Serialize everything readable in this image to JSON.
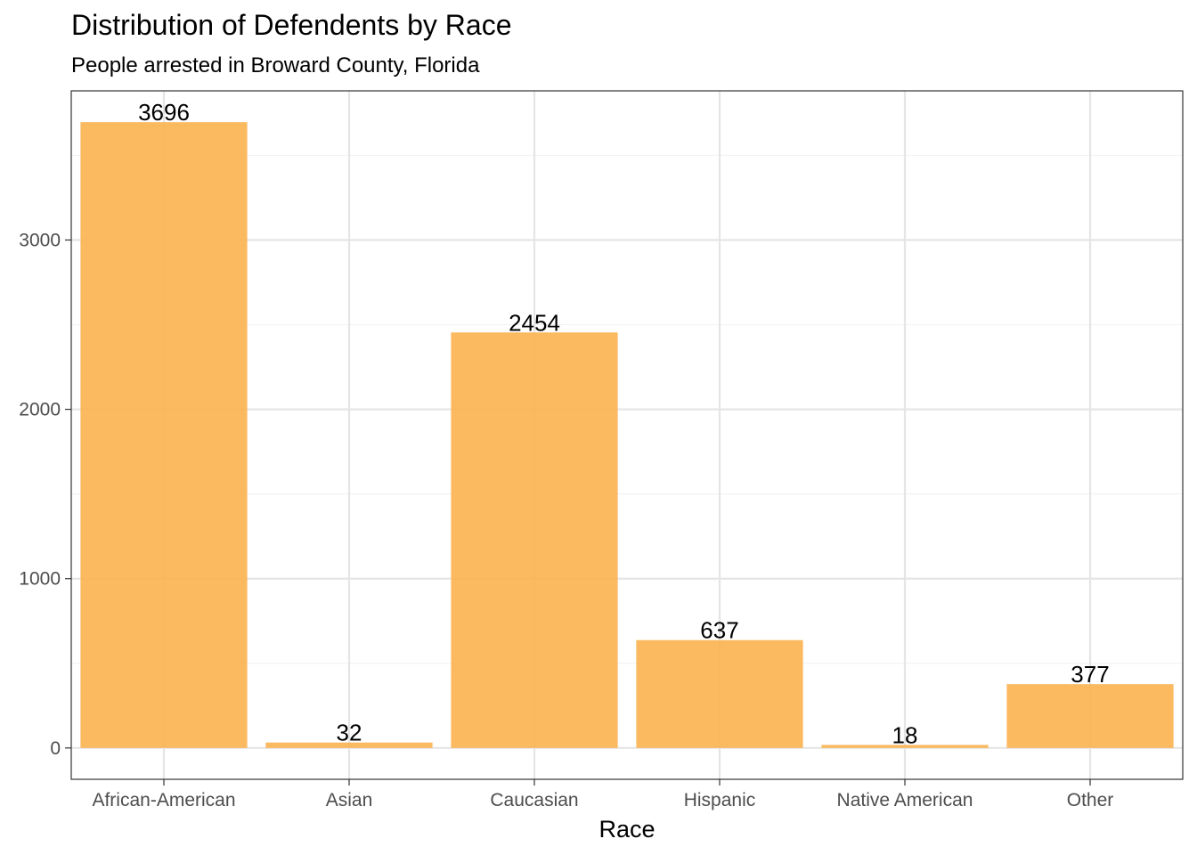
{
  "chart_data": {
    "type": "bar",
    "title": "Distribution of Defendents by Race",
    "subtitle": "People arrested in Broward County, Florida",
    "xlabel": "Race",
    "ylabel": "",
    "categories": [
      "African-American",
      "Asian",
      "Caucasian",
      "Hispanic",
      "Native American",
      "Other"
    ],
    "values": [
      3696,
      32,
      2454,
      637,
      18,
      377
    ],
    "data_labels": [
      "3696",
      "32",
      "2454",
      "637",
      "18",
      "377"
    ],
    "y_ticks": [
      0,
      1000,
      2000,
      3000
    ],
    "y_tick_labels": [
      "0",
      "1000",
      "2000",
      "3000"
    ],
    "ylim": [
      -185,
      3881
    ],
    "grid": true,
    "legend": "none",
    "colors": {
      "bar": "#fbb454",
      "panel_border": "#333333",
      "grid_major": "#e5e5e5",
      "grid_minor": "#f2f2f2",
      "tick_text": "#4d4d4d"
    }
  }
}
